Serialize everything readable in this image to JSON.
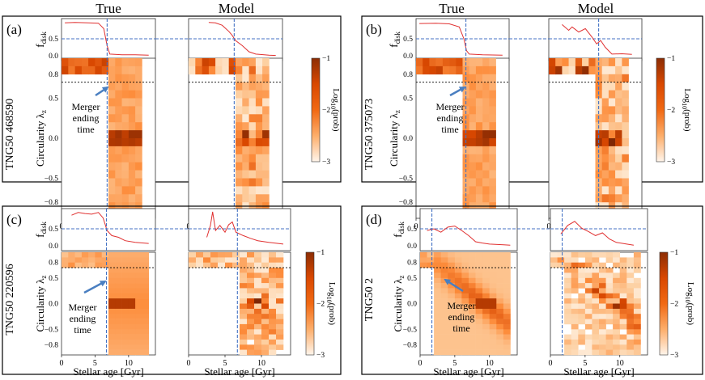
{
  "column_titles": {
    "true": "True",
    "model": "Model"
  },
  "common": {
    "fdisk_label": "f",
    "fdisk_sub": "disk",
    "circ_label": "Circularity λ",
    "circ_sub": "z",
    "xlabel": "Stellar age [Gyr]",
    "cbar_label": "Log",
    "cbar_sub": "10",
    "cbar_label_tail": "(prob)",
    "cbar_ticks": [
      "−1",
      "−2",
      "−3"
    ],
    "x_ticks": [
      0,
      5,
      10
    ],
    "x_range": [
      0,
      14
    ],
    "fdisk_ticks": [
      "0.5",
      "0.0"
    ],
    "lambda_range": [
      -1,
      1
    ],
    "lambda_ticks": [
      "0.8",
      "0.5",
      "0.0",
      "−0.5",
      "−0.8"
    ],
    "disk_threshold_lambda": 0.7,
    "fdisk_reference": 0.5,
    "merger_text": [
      "Merger",
      "ending",
      "time"
    ],
    "colors": {
      "fdisk_line": "#e03030",
      "merger_line": "#4472c4",
      "arrow": "#4a7fc1",
      "threshold": "#000000"
    }
  },
  "panels": [
    {
      "label": "(a)",
      "galaxy": "TNG50 468590",
      "merger_age_gyr": 6.8,
      "fdisk_true": [
        [
          0.5,
          0.97
        ],
        [
          2,
          0.98
        ],
        [
          4,
          0.97
        ],
        [
          5.5,
          0.96
        ],
        [
          6.3,
          0.8
        ],
        [
          6.8,
          0.3
        ],
        [
          7.2,
          0.05
        ],
        [
          9,
          0.03
        ],
        [
          11,
          0.03
        ],
        [
          13,
          0.02
        ]
      ],
      "fdisk_model": [
        [
          3,
          0.98
        ],
        [
          4,
          0.97
        ],
        [
          5,
          0.9
        ],
        [
          6,
          0.72
        ],
        [
          6.5,
          0.6
        ],
        [
          7,
          0.45
        ],
        [
          8,
          0.3
        ],
        [
          9,
          0.12
        ],
        [
          10,
          0.05
        ],
        [
          12,
          0.02
        ],
        [
          13,
          0.01
        ]
      ],
      "model_noisy": false
    },
    {
      "label": "(b)",
      "galaxy": "TNG50 375073",
      "merger_age_gyr": 7.5,
      "fdisk_true": [
        [
          0.5,
          0.95
        ],
        [
          3,
          0.96
        ],
        [
          5,
          0.94
        ],
        [
          6.5,
          0.85
        ],
        [
          7.2,
          0.5
        ],
        [
          7.6,
          0.15
        ],
        [
          8,
          0.05
        ],
        [
          10,
          0.03
        ],
        [
          13,
          0.02
        ]
      ],
      "fdisk_model": [
        [
          2,
          0.92
        ],
        [
          3,
          0.75
        ],
        [
          3.5,
          0.85
        ],
        [
          4.5,
          0.7
        ],
        [
          5.5,
          0.8
        ],
        [
          6.5,
          0.55
        ],
        [
          7.2,
          0.35
        ],
        [
          7.8,
          0.45
        ],
        [
          8.5,
          0.25
        ],
        [
          9.5,
          0.05
        ],
        [
          11,
          0.06
        ],
        [
          12.5,
          0.04
        ]
      ],
      "model_noisy": true
    },
    {
      "label": "(c)",
      "galaxy": "TNG50 220596",
      "merger_age_gyr": 6.7,
      "fdisk_true": [
        [
          1.5,
          0.9
        ],
        [
          2.5,
          0.98
        ],
        [
          3.5,
          0.95
        ],
        [
          4.5,
          0.93
        ],
        [
          5.5,
          0.98
        ],
        [
          6.2,
          0.82
        ],
        [
          6.8,
          0.45
        ],
        [
          7.5,
          0.3
        ],
        [
          8.5,
          0.25
        ],
        [
          9.5,
          0.15
        ],
        [
          11,
          0.1
        ],
        [
          13,
          0.07
        ]
      ],
      "fdisk_model": [
        [
          2.5,
          0.25
        ],
        [
          3,
          0.6
        ],
        [
          3.3,
          1.0
        ],
        [
          3.7,
          0.45
        ],
        [
          4.3,
          0.6
        ],
        [
          5,
          0.4
        ],
        [
          5.5,
          0.62
        ],
        [
          6,
          0.7
        ],
        [
          6.5,
          0.4
        ],
        [
          7.5,
          0.3
        ],
        [
          8.5,
          0.22
        ],
        [
          9.5,
          0.15
        ],
        [
          11,
          0.1
        ],
        [
          13,
          0.05
        ]
      ],
      "model_noisy": true
    },
    {
      "label": "(d)",
      "galaxy": "TNG50 2",
      "merger_age_gyr": 1.7,
      "fdisk_true": [
        [
          1,
          0.45
        ],
        [
          2,
          0.5
        ],
        [
          3,
          0.4
        ],
        [
          4,
          0.55
        ],
        [
          5,
          0.58
        ],
        [
          6,
          0.45
        ],
        [
          7,
          0.3
        ],
        [
          8,
          0.12
        ],
        [
          9,
          0.08
        ],
        [
          10,
          0.05
        ],
        [
          12,
          0.03
        ],
        [
          13,
          0.02
        ]
      ],
      "fdisk_model": [
        [
          1.5,
          0.35
        ],
        [
          2.5,
          0.6
        ],
        [
          3.5,
          0.72
        ],
        [
          4.5,
          0.52
        ],
        [
          5.5,
          0.42
        ],
        [
          6.5,
          0.3
        ],
        [
          7.5,
          0.38
        ],
        [
          8.5,
          0.2
        ],
        [
          9.5,
          0.1
        ],
        [
          11,
          0.05
        ],
        [
          12,
          0.02
        ]
      ],
      "model_noisy": false
    }
  ]
}
